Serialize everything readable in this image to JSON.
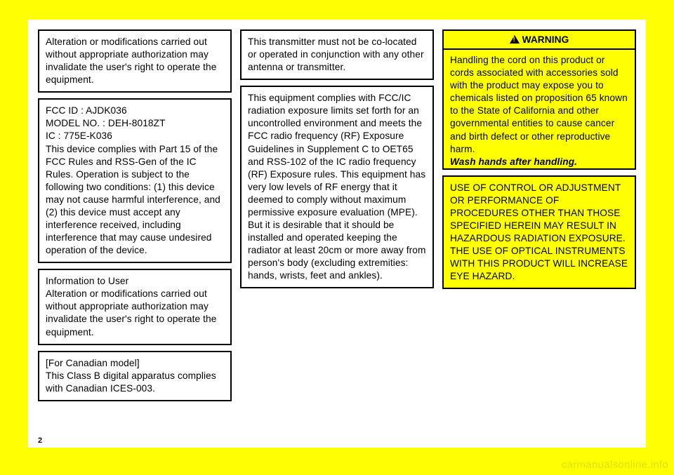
{
  "page_number": "2",
  "watermark": "carmanualsonline.info",
  "colors": {
    "page_bg": "#feff00",
    "sheet_bg": "#ffffff",
    "border": "#000000",
    "text": "#000000"
  },
  "col1": {
    "box1": "Alteration or modifications carried out without appropriate authorization may invalidate the user's right to operate the equipment.",
    "box2": "FCC ID : AJDK036\nMODEL NO. : DEH-8018ZT\nIC : 775E-K036\nThis device complies with Part 15 of the FCC Rules and RSS-Gen of the IC Rules. Operation is subject to the following two conditions: (1) this device may not cause harmful interference, and (2) this device must accept any interference received, including interference that may cause undesired operation of the device.",
    "box3": "Information to User\nAlteration or modifications carried out without appropriate authorization may invalidate the user's right to operate the equipment.",
    "box4": "[For Canadian model]\nThis Class B digital apparatus complies with Canadian ICES-003."
  },
  "col2": {
    "box1": "This transmitter must not be co-located or operated in conjunction with any other antenna or transmitter.",
    "box2": "This equipment complies with FCC/IC radiation exposure limits set forth for an uncontrolled environment and meets the FCC radio frequency (RF) Exposure Guidelines in Supplement C to OET65 and RSS-102 of the IC radio frequency (RF) Exposure rules. This equipment has very low levels of RF energy that it deemed to comply without maximum permissive exposure evaluation (MPE).  But it is desirable that it should be installed and operated keeping the radiator at least 20cm or more away from person's body (excluding extremities: hands, wrists, feet and ankles)."
  },
  "col3": {
    "warning_label": "WARNING",
    "warning_body": "Handling the cord on this product or cords associated with accessories sold with the product may expose you to chemicals listed on proposition 65 known to the State of California and other governmental entities to cause cancer and birth defect or other reproductive harm.",
    "warning_em": "Wash hands after handling",
    "caution": "USE OF CONTROL OR ADJUST­MENT OR PERFORMANCE OF PROCEDURES OTHER THAN THOSE SPECIFIED HEREIN MAY RESULT IN HAZARDOUS RADI­ATION EXPOSURE.\nTHE USE OF OPTICAL INSTRU­MENTS WITH THIS PRODUCT WILL INCREASE EYE HAZARD."
  }
}
